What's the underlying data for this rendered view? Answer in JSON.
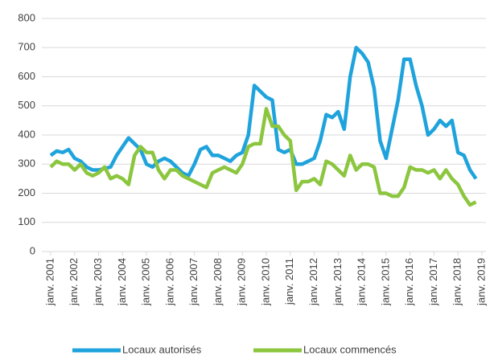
{
  "chart_data": {
    "type": "line",
    "x": [
      "2001-01",
      "2001-04",
      "2001-07",
      "2001-10",
      "2002-01",
      "2002-04",
      "2002-07",
      "2002-10",
      "2003-01",
      "2003-04",
      "2003-07",
      "2003-10",
      "2004-01",
      "2004-04",
      "2004-07",
      "2004-10",
      "2005-01",
      "2005-04",
      "2005-07",
      "2005-10",
      "2006-01",
      "2006-04",
      "2006-07",
      "2006-10",
      "2007-01",
      "2007-04",
      "2007-07",
      "2007-10",
      "2008-01",
      "2008-04",
      "2008-07",
      "2008-10",
      "2009-01",
      "2009-04",
      "2009-07",
      "2009-10",
      "2010-01",
      "2010-04",
      "2010-07",
      "2010-10",
      "2011-01",
      "2011-04",
      "2011-07",
      "2011-10",
      "2012-01",
      "2012-04",
      "2012-07",
      "2012-10",
      "2013-01",
      "2013-04",
      "2013-07",
      "2013-10",
      "2014-01",
      "2014-04",
      "2014-07",
      "2014-10",
      "2015-01",
      "2015-04",
      "2015-07",
      "2015-10",
      "2016-01",
      "2016-04",
      "2016-07",
      "2016-10",
      "2017-01",
      "2017-04",
      "2017-07",
      "2017-10",
      "2018-01",
      "2018-04",
      "2018-07",
      "2018-10"
    ],
    "series": [
      {
        "name": "Locaux autorisés",
        "color": "#1fa3dc",
        "values": [
          330,
          345,
          340,
          350,
          320,
          310,
          290,
          280,
          280,
          285,
          290,
          330,
          360,
          390,
          370,
          350,
          300,
          290,
          310,
          320,
          310,
          290,
          270,
          260,
          300,
          350,
          360,
          330,
          330,
          320,
          310,
          330,
          340,
          400,
          570,
          550,
          530,
          520,
          350,
          340,
          350,
          300,
          300,
          310,
          320,
          380,
          470,
          460,
          480,
          420,
          600,
          700,
          680,
          650,
          560,
          380,
          320,
          420,
          520,
          660,
          660,
          570,
          500,
          400,
          420,
          450,
          430,
          450,
          340,
          330,
          280,
          250
        ]
      },
      {
        "name": "Locaux commencés",
        "color": "#8cc63f",
        "values": [
          290,
          310,
          300,
          300,
          280,
          300,
          270,
          260,
          270,
          290,
          250,
          260,
          250,
          230,
          330,
          360,
          340,
          340,
          280,
          250,
          280,
          280,
          260,
          250,
          240,
          230,
          220,
          270,
          280,
          290,
          280,
          270,
          300,
          360,
          370,
          370,
          490,
          430,
          430,
          400,
          380,
          210,
          240,
          240,
          250,
          230,
          310,
          300,
          280,
          260,
          330,
          280,
          300,
          300,
          290,
          200,
          200,
          190,
          190,
          220,
          290,
          280,
          280,
          270,
          280,
          250,
          280,
          250,
          230,
          190,
          160,
          170
        ]
      }
    ],
    "ylim": [
      0,
      800
    ],
    "yticks": [
      0,
      100,
      200,
      300,
      400,
      500,
      600,
      700,
      800
    ],
    "xlim": [
      "2001-01",
      "2019-01"
    ],
    "xticks": [
      {
        "value": "2001-01",
        "label": "janv. 2001"
      },
      {
        "value": "2002-01",
        "label": "janv. 2002"
      },
      {
        "value": "2003-01",
        "label": "janv. 2003"
      },
      {
        "value": "2004-01",
        "label": "janv. 2004"
      },
      {
        "value": "2005-01",
        "label": "janv. 2005"
      },
      {
        "value": "2006-01",
        "label": "janv. 2006"
      },
      {
        "value": "2007-01",
        "label": "janv. 2007"
      },
      {
        "value": "2008-01",
        "label": "janv. 2008"
      },
      {
        "value": "2009-01",
        "label": "janv. 2009"
      },
      {
        "value": "2010-01",
        "label": "janv. 2010"
      },
      {
        "value": "2011-01",
        "label": "janv. 2011"
      },
      {
        "value": "2012-01",
        "label": "janv. 2012"
      },
      {
        "value": "2013-01",
        "label": "janv. 2013"
      },
      {
        "value": "2014-01",
        "label": "janv. 2014"
      },
      {
        "value": "2015-01",
        "label": "janv. 2015"
      },
      {
        "value": "2016-01",
        "label": "janv. 2016"
      },
      {
        "value": "2017-01",
        "label": "janv. 2017"
      },
      {
        "value": "2018-01",
        "label": "janv. 2018"
      },
      {
        "value": "2019-01",
        "label": "janv. 2019"
      }
    ],
    "grid": true,
    "legend": "bottom"
  }
}
